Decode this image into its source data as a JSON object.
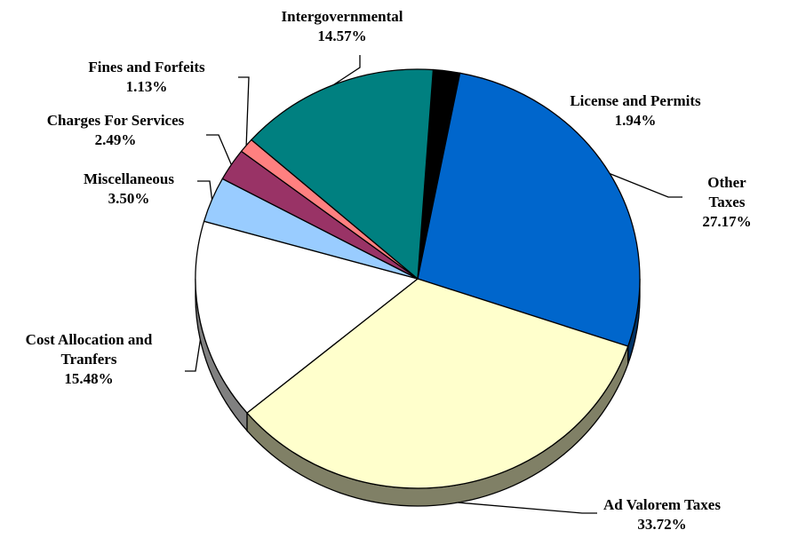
{
  "chart_data": {
    "type": "pie",
    "categories": [
      "License and Permits",
      "Other Taxes",
      "Ad Valorem Taxes",
      "Cost Allocation and Tranfers",
      "Miscellaneous",
      "Charges For Services",
      "Fines and Forfeits",
      "Intergovernmental"
    ],
    "values": [
      1.94,
      27.17,
      33.72,
      15.48,
      3.5,
      2.49,
      1.13,
      14.57
    ],
    "value_labels": [
      "1.94%",
      "27.17%",
      "33.72%",
      "15.48%",
      "3.50%",
      "2.49%",
      "1.13%",
      "14.57%"
    ],
    "colors": [
      "#000000",
      "#0066cc",
      "#ffffcc",
      "#ffffff",
      "#99ccff",
      "#993366",
      "#ff8080",
      "#008080"
    ]
  }
}
